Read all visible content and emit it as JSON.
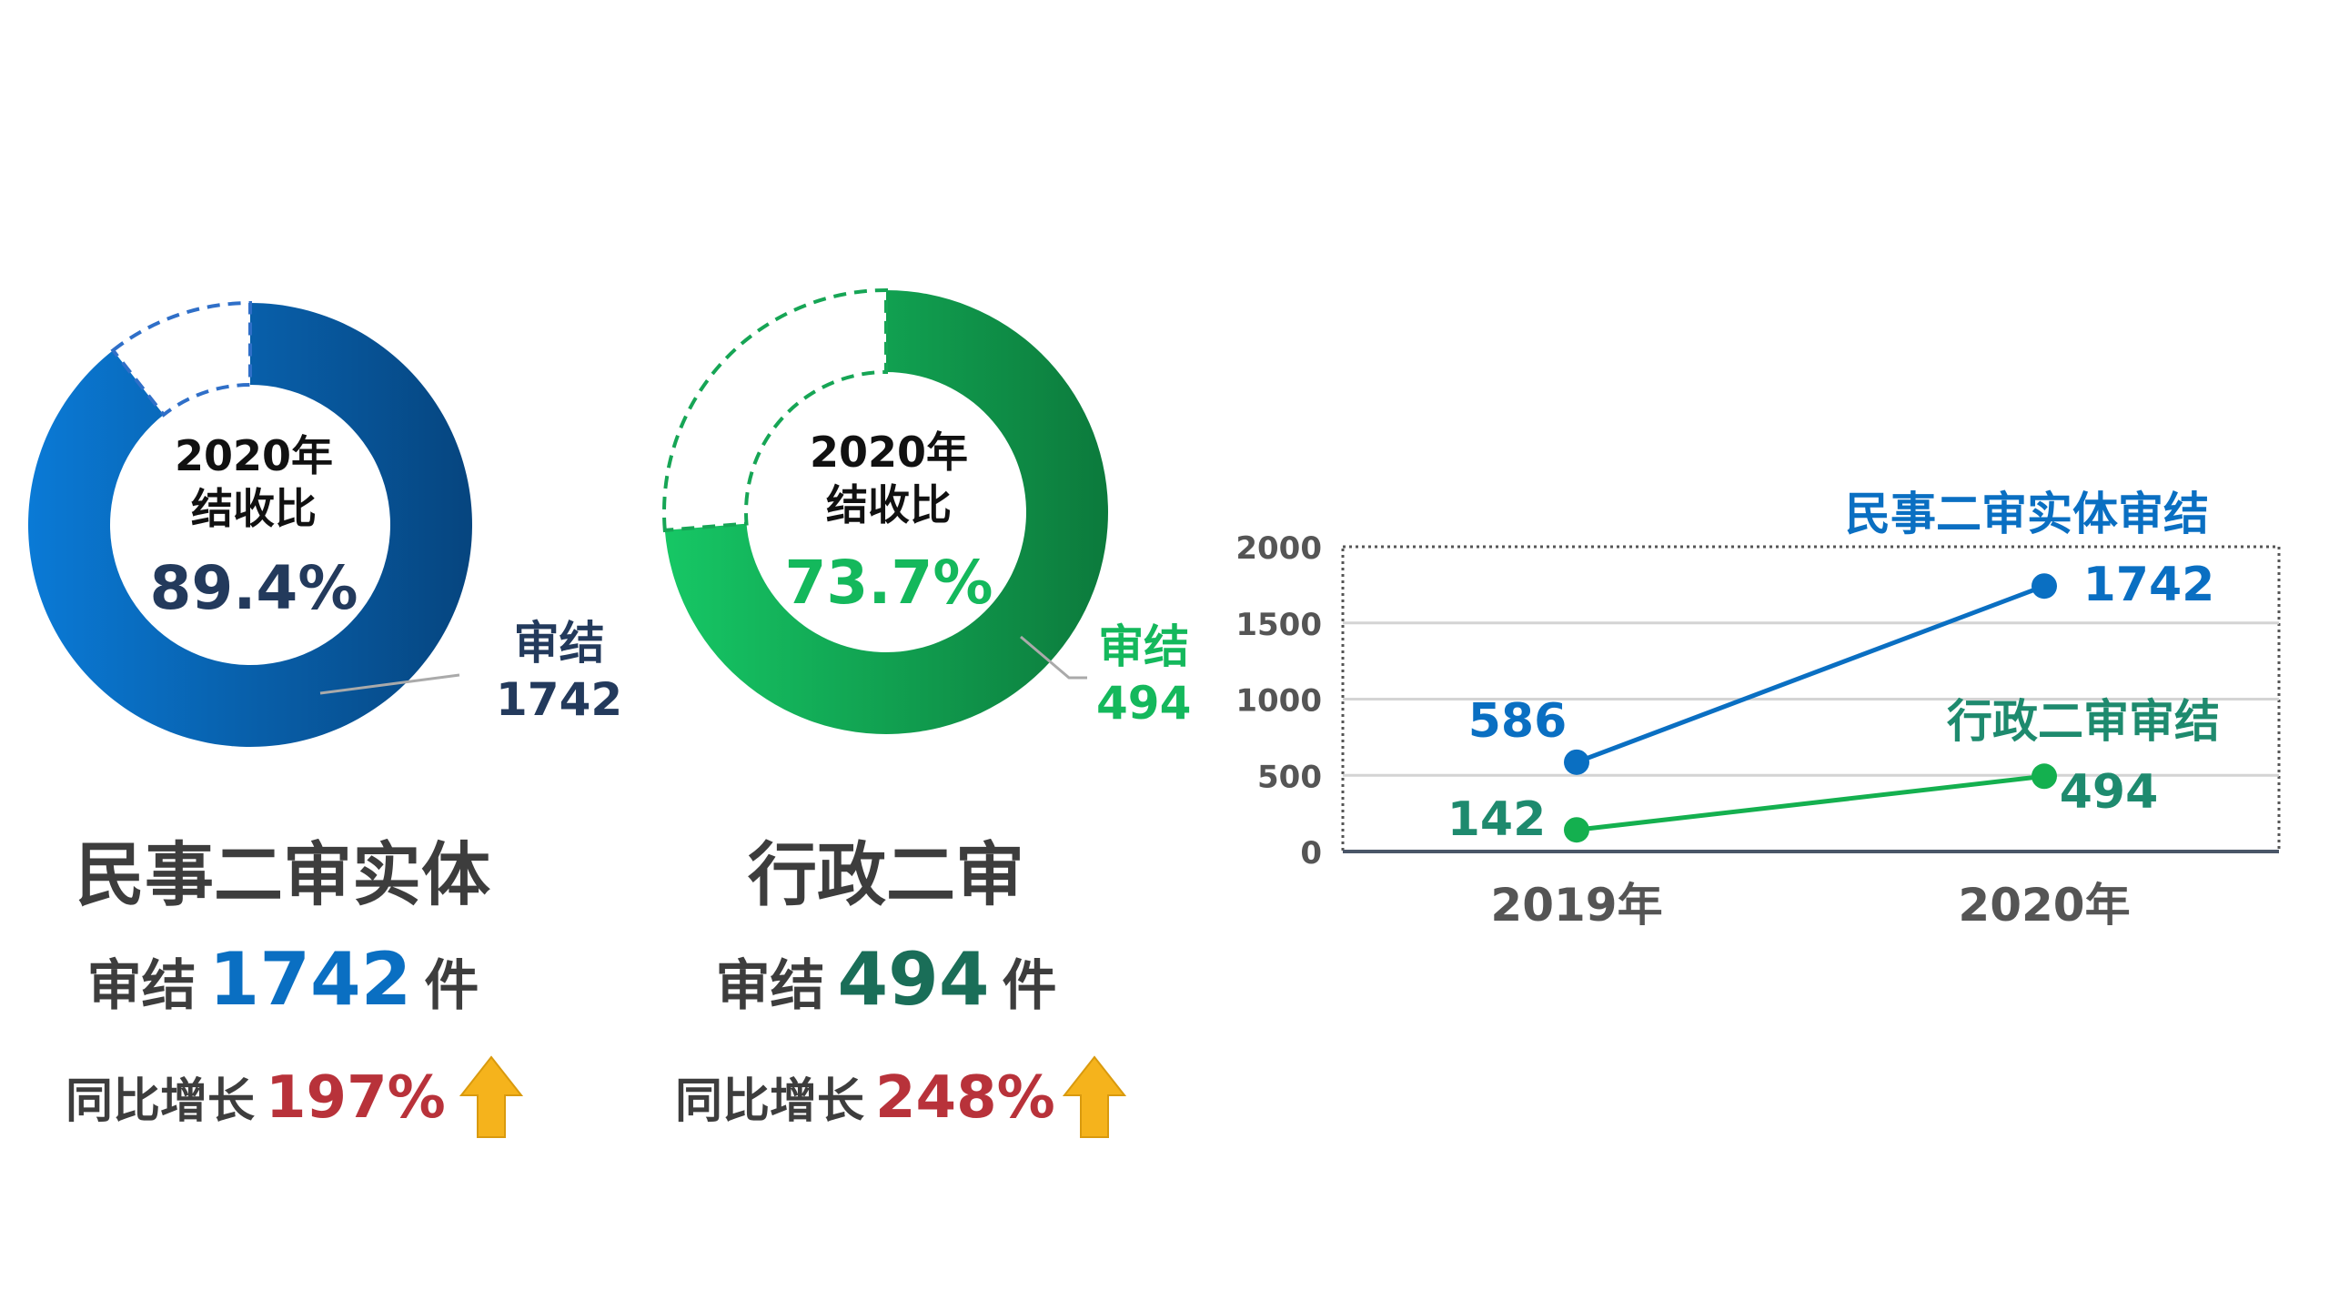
{
  "colors": {
    "blue": "#0a6fc2",
    "blue_dark": "#06457f",
    "green": "#14c060",
    "green_dark": "#0c7a3c",
    "teal": "#1e8a6e",
    "navy": "#233a5c",
    "red": "#b8323a",
    "arrow": "#f5b31c"
  },
  "panels": [
    {
      "inner_title_1": "2020年",
      "inner_title_2": "结收比",
      "ratio_text": "89.4%",
      "ratio": 0.894,
      "side_label": "审结",
      "side_value": "1742",
      "title": "民事二审实体",
      "count_prefix": "审结",
      "count": "1742",
      "count_suffix": "件",
      "growth_label": "同比增长",
      "growth": "197%",
      "arrow_icon": "up-arrow-icon"
    },
    {
      "inner_title_1": "2020年",
      "inner_title_2": "结收比",
      "ratio_text": "73.7%",
      "ratio": 0.737,
      "side_label": "审结",
      "side_value": "494",
      "title": "行政二审",
      "count_prefix": "审结",
      "count": "494",
      "count_suffix": "件",
      "growth_label": "同比增长",
      "growth": "248%",
      "arrow_icon": "up-arrow-icon"
    }
  ],
  "chart_data": {
    "type": "line",
    "categories": [
      "2019年",
      "2020年"
    ],
    "series": [
      {
        "name": "民事二审实体审结",
        "values": [
          586,
          1742
        ],
        "labels": [
          "586",
          "1742"
        ]
      },
      {
        "name": "行政二审审结",
        "values": [
          142,
          494
        ],
        "labels": [
          "142",
          "494"
        ]
      }
    ],
    "ylim": [
      0,
      2000
    ],
    "yticks": [
      "0",
      "500",
      "1000",
      "1500",
      "2000"
    ],
    "ytick_values": [
      0,
      500,
      1000,
      1500,
      2000
    ],
    "grid": true,
    "title": "",
    "xlabel": "",
    "ylabel": ""
  }
}
